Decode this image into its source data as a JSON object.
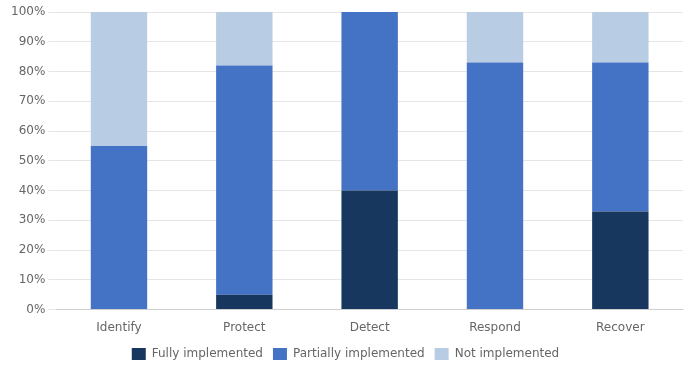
{
  "chart_data": {
    "type": "bar",
    "stacked": true,
    "categories": [
      "Identify",
      "Protect",
      "Detect",
      "Respond",
      "Recover"
    ],
    "series": [
      {
        "name": "Fully implemented",
        "color": "#17375e",
        "values": [
          0,
          5,
          40,
          0,
          33
        ]
      },
      {
        "name": "Partially implemented",
        "color": "#4472c4",
        "values": [
          55,
          77,
          60,
          83,
          50
        ]
      },
      {
        "name": "Not implemented",
        "color": "#b8cce4",
        "values": [
          45,
          18,
          0,
          17,
          17
        ]
      }
    ],
    "ylim": [
      0,
      100
    ],
    "yticks": [
      {
        "value": 0,
        "label": "0%"
      },
      {
        "value": 10,
        "label": "10%"
      },
      {
        "value": 20,
        "label": "20%"
      },
      {
        "value": 30,
        "label": "30%"
      },
      {
        "value": 40,
        "label": "40%"
      },
      {
        "value": 50,
        "label": "50%"
      },
      {
        "value": 60,
        "label": "60%"
      },
      {
        "value": 70,
        "label": "70%"
      },
      {
        "value": 80,
        "label": "80%"
      },
      {
        "value": 90,
        "label": "90%"
      },
      {
        "value": 100,
        "label": "100%"
      }
    ],
    "grid": true,
    "legend": "bottom"
  }
}
